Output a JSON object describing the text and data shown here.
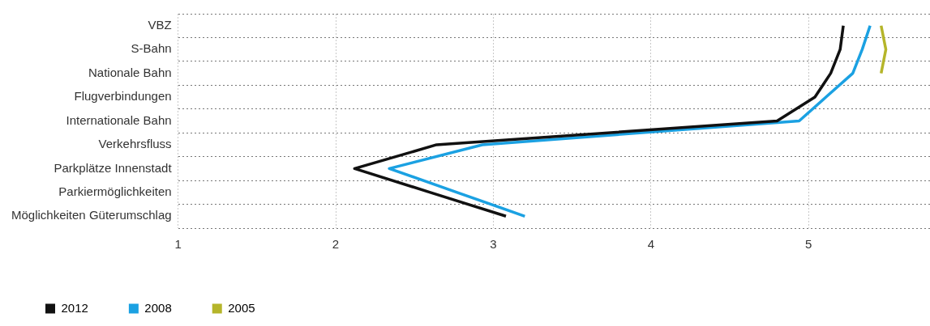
{
  "chart_data": {
    "type": "line",
    "orientation": "horizontal",
    "categories": [
      "VBZ",
      "S-Bahn",
      "Nationale Bahn",
      "Flugverbindungen",
      "Internationale Bahn",
      "Verkehrsfluss",
      "Parkplätze Innenstadt",
      "Parkiermöglichkeiten",
      "Möglichkeiten Güterumschlag"
    ],
    "series": [
      {
        "name": "2012",
        "color": "#111111",
        "values": [
          5.22,
          5.2,
          5.14,
          5.04,
          4.8,
          2.64,
          2.12,
          2.6,
          3.08
        ]
      },
      {
        "name": "2008",
        "color": "#1ba1e2",
        "values": [
          5.39,
          5.34,
          5.28,
          5.11,
          4.94,
          2.93,
          2.34,
          2.77,
          3.2
        ]
      },
      {
        "name": "2005",
        "color": "#b5b52a",
        "values": [
          5.46,
          5.49,
          5.46,
          null,
          null,
          null,
          null,
          null,
          null
        ]
      }
    ],
    "xlim": [
      1,
      5.77
    ],
    "xticks": [
      1,
      2,
      3,
      4,
      5
    ],
    "grid": true,
    "legend": "bottom left",
    "marker": "none",
    "line_style": "solid"
  }
}
